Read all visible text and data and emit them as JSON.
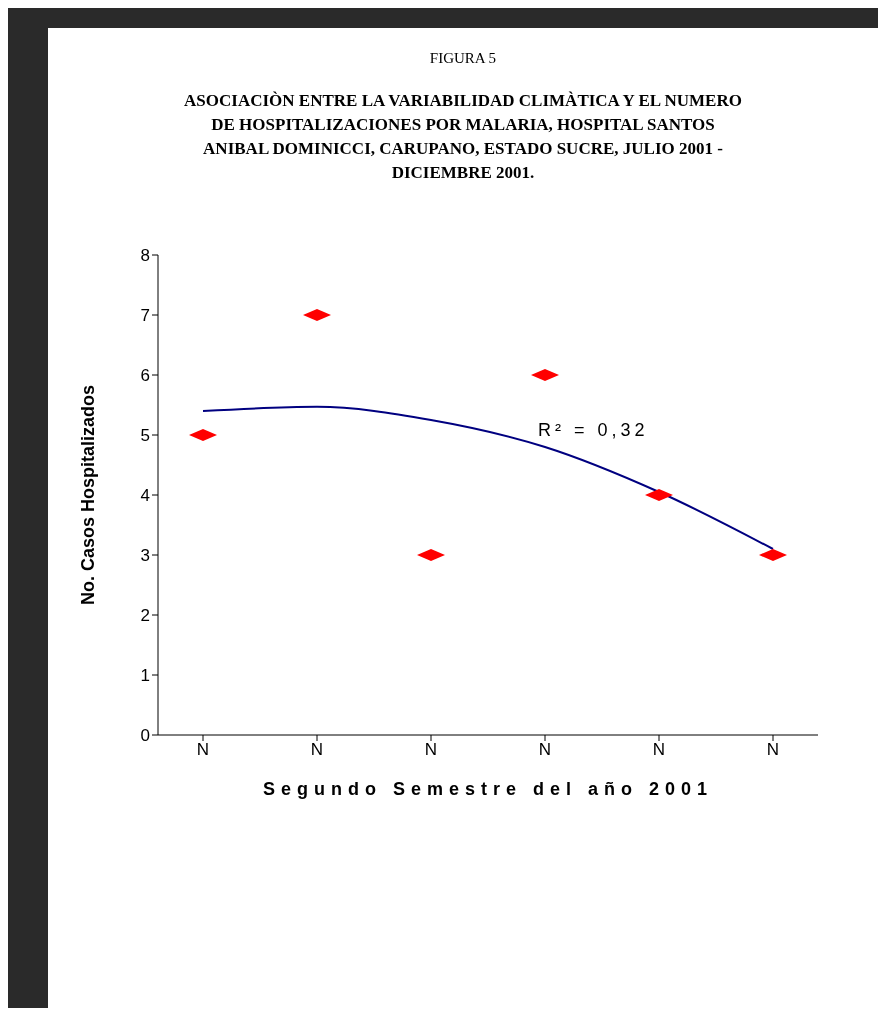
{
  "chart_data": {
    "type": "scatter",
    "title": "FIGURA 5",
    "subtitle": "ASOCIACIÒN ENTRE LA VARIABILIDAD CLIMÀTICA Y EL NUMERO DE HOSPITALIZACIONES POR MALARIA, HOSPITAL SANTOS ANIBAL DOMINICCI, CARUPANO, ESTADO SUCRE, JULIO 2001 -  DICIEMBRE 2001.",
    "xlabel": "Segundo Semestre del año 2001",
    "ylabel": "No. Casos Hospitalizados",
    "annotations": [
      "R² = 0,32"
    ],
    "categories": [
      "N",
      "N",
      "N",
      "N",
      "N",
      "N"
    ],
    "series": [
      {
        "color": "#ff0000",
        "marker": "diamond",
        "values": [
          5,
          7,
          3,
          6,
          4,
          3
        ]
      },
      {
        "type": "line",
        "color": "#000080",
        "values": [
          5.4,
          5.47,
          5.25,
          4.8,
          4.05,
          3.1
        ]
      }
    ],
    "ylim": [
      0,
      8
    ],
    "yticks": [
      0,
      1,
      2,
      3,
      4,
      5,
      6,
      7,
      8
    ]
  }
}
